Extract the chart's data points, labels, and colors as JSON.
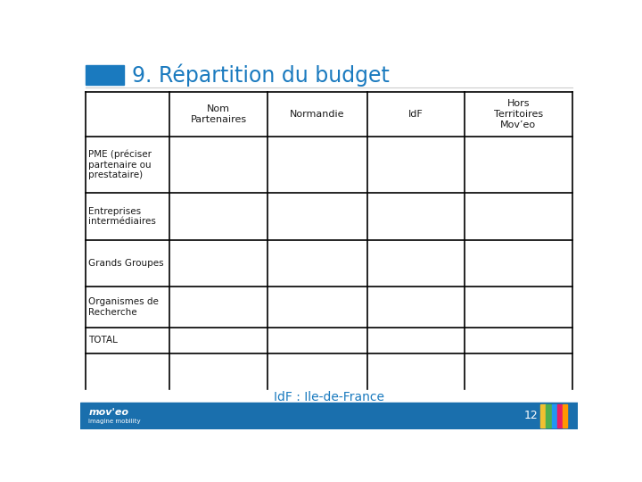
{
  "title": "9. Répartition du budget",
  "title_color": "#1a7abf",
  "title_accent_color": "#1a7abf",
  "background_color": "#ffffff",
  "table_header": [
    "Nom\nPartenaires",
    "Normandie",
    "IdF",
    "Hors\nTerritoires\nMov’eo"
  ],
  "table_rows": [
    [
      "PME (préciser\npartenaire ou\nprestataire)",
      "",
      "",
      ""
    ],
    [
      "Entreprises\nintermédiaires",
      "",
      "",
      ""
    ],
    [
      "Grands Groupes",
      "",
      "",
      ""
    ],
    [
      "Organismes de\nRecherche",
      "",
      "",
      ""
    ],
    [
      "TOTAL",
      "",
      "",
      ""
    ]
  ],
  "footer_text": "IdF : Ile-de-France",
  "footer_bar_color": "#1a6fad",
  "footer_page": "12",
  "font_color": "#1a1a1a",
  "table_border_color": "#000000",
  "table_text_color": "#1a1a1a",
  "header_text_not_bold": true,
  "line_colors_footer": [
    "#f0c030",
    "#4caf50",
    "#2196f3",
    "#e91e63",
    "#ff9800"
  ]
}
